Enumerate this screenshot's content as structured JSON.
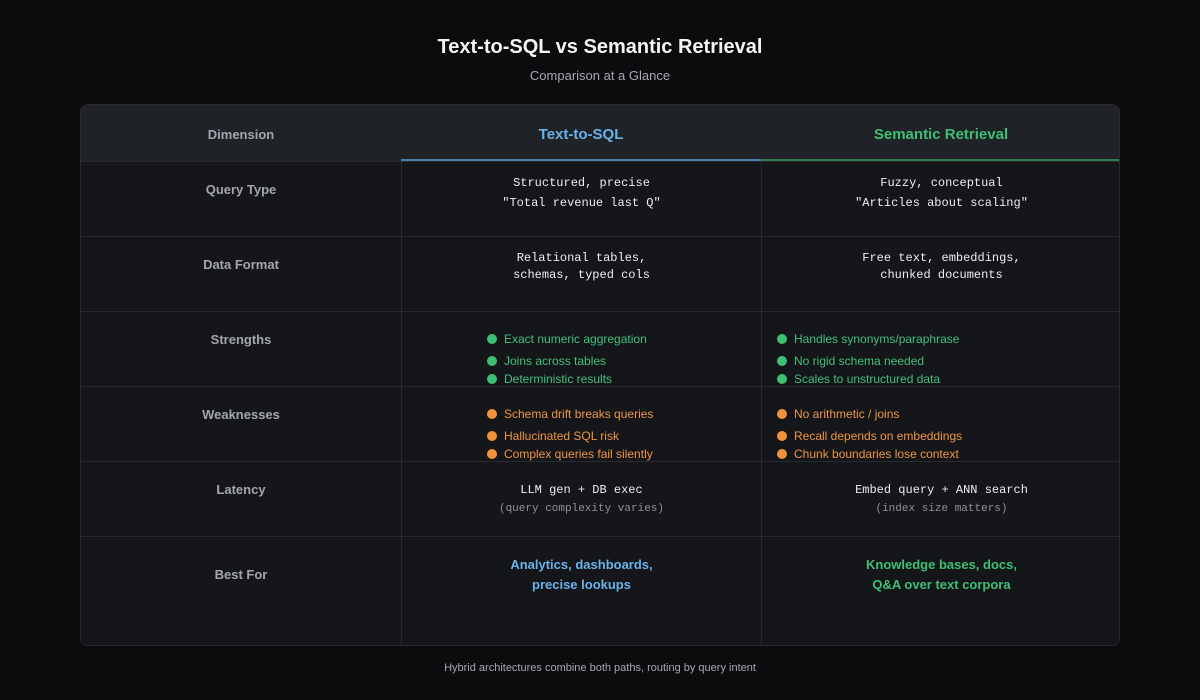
{
  "title": "Text-to-SQL vs Semantic Retrieval",
  "subtitle": "Comparison at a Glance",
  "columns": {
    "dimension": "Dimension",
    "sql": "Text-to-SQL",
    "semantic": "Semantic Retrieval"
  },
  "colors": {
    "sql_accent": "#6ab2ea",
    "semantic_accent": "#3fbf73",
    "weakness": "#f0913f",
    "background": "#0b0c0e",
    "table_bg": "#141619"
  },
  "rows": {
    "query_type": {
      "label": "Query Type",
      "sql": [
        "Structured, precise",
        "\"Total revenue last Q\""
      ],
      "semantic": [
        "Fuzzy, conceptual",
        "\"Articles about scaling\""
      ]
    },
    "data_format": {
      "label": "Data Format",
      "sql": [
        "Relational tables,",
        "schemas, typed cols"
      ],
      "semantic": [
        "Free text, embeddings,",
        "chunked documents"
      ]
    },
    "strengths": {
      "label": "Strengths",
      "sql": [
        "Exact numeric aggregation",
        "Joins across tables",
        "Deterministic results"
      ],
      "semantic": [
        "Handles synonyms/paraphrase",
        "No rigid schema needed",
        "Scales to unstructured data"
      ]
    },
    "weaknesses": {
      "label": "Weaknesses",
      "sql": [
        "Schema drift breaks queries",
        "Hallucinated SQL risk",
        "Complex queries fail silently"
      ],
      "semantic": [
        "No arithmetic / joins",
        "Recall depends on embeddings",
        "Chunk boundaries lose context"
      ]
    },
    "latency": {
      "label": "Latency",
      "sql": "LLM gen + DB exec",
      "sql_note": "(query complexity varies)",
      "semantic": "Embed query + ANN search",
      "semantic_note": "(index size matters)"
    },
    "best_for": {
      "label": "Best For",
      "sql": [
        "Analytics, dashboards,",
        "precise lookups"
      ],
      "semantic": [
        "Knowledge bases, docs,",
        "Q&A over text corpora"
      ]
    }
  },
  "footer": "Hybrid architectures combine both paths, routing by query intent"
}
